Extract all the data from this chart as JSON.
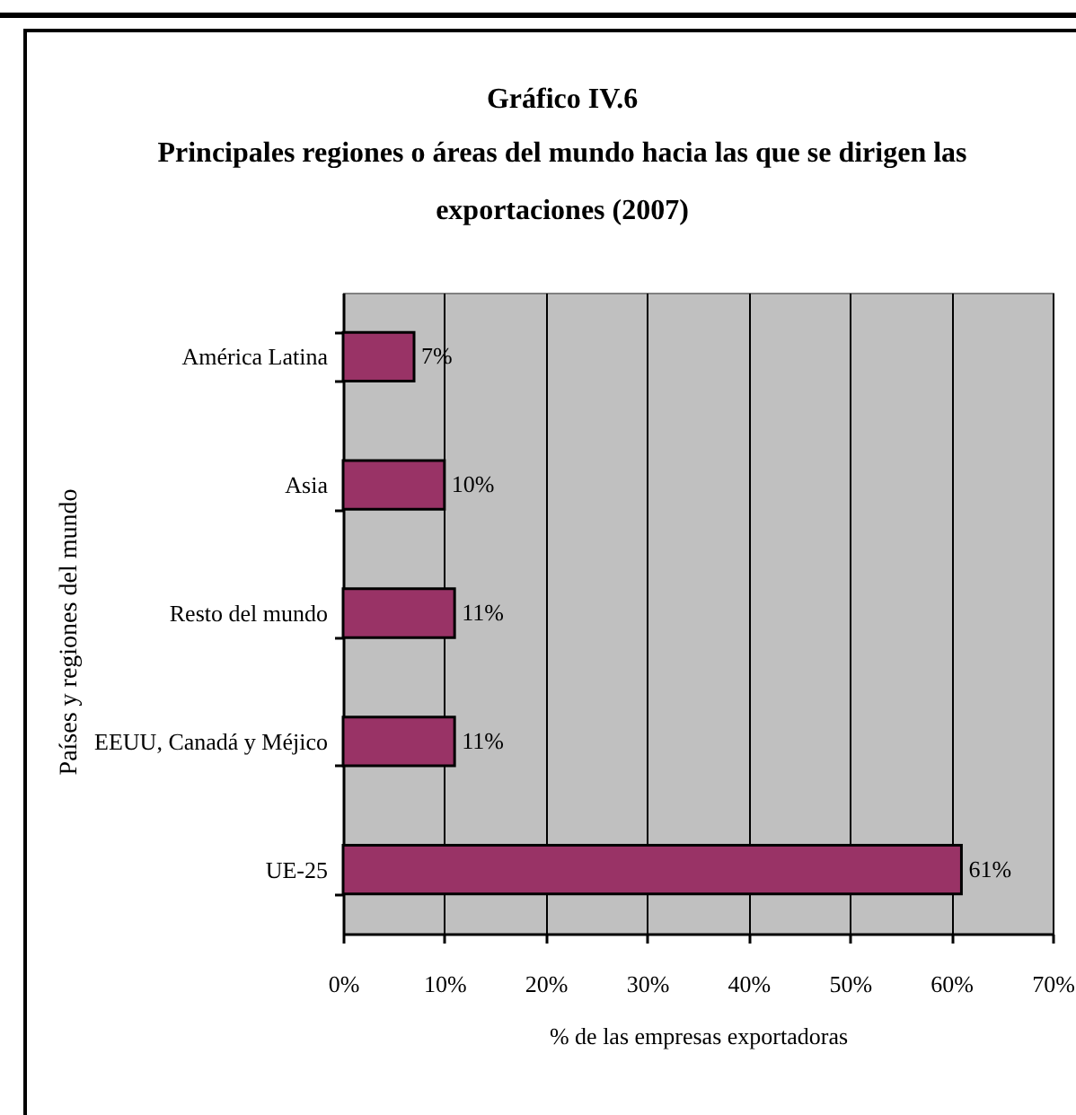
{
  "chart_data": {
    "type": "bar",
    "orientation": "horizontal",
    "title": "Gráfico IV.6",
    "subtitle": "Principales regiones o áreas del mundo hacia las que se dirigen las exportaciones (2007)",
    "xlabel": "% de las empresas exportadoras",
    "ylabel": "Países y regiones del mundo",
    "categories": [
      "América Latina",
      "Asia",
      "Resto del mundo",
      "EEUU, Canadá y Méjico",
      "UE-25"
    ],
    "values": [
      7,
      10,
      11,
      11,
      61
    ],
    "value_labels": [
      "7%",
      "10%",
      "11%",
      "11%",
      "61%"
    ],
    "color": "#993366",
    "xlim": [
      0,
      70
    ],
    "xticks": [
      {
        "value": 0,
        "label": "0%"
      },
      {
        "value": 10,
        "label": "10%"
      },
      {
        "value": 20,
        "label": "20%"
      },
      {
        "value": 30,
        "label": "30%"
      },
      {
        "value": 40,
        "label": "40%"
      },
      {
        "value": 50,
        "label": "50%"
      },
      {
        "value": 60,
        "label": "60%"
      },
      {
        "value": 70,
        "label": "70%"
      }
    ],
    "grid": "x"
  }
}
